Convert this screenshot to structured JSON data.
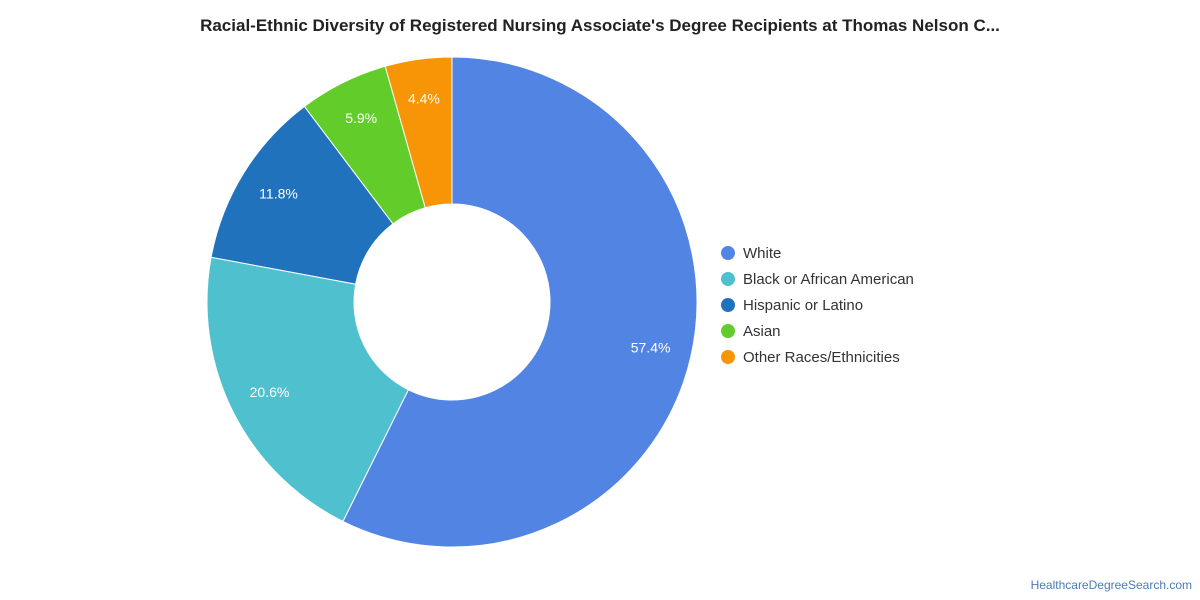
{
  "chart_data": {
    "type": "pie",
    "title": "Racial-Ethnic Diversity of Registered Nursing Associate's Degree Recipients at Thomas Nelson C...",
    "donut": true,
    "legend_position": "right",
    "slices": [
      {
        "label": "White",
        "value": 57.4,
        "display": "57.4%",
        "color": "#5285e3"
      },
      {
        "label": "Black or African American",
        "value": 20.6,
        "display": "20.6%",
        "color": "#4fc1ce"
      },
      {
        "label": "Hispanic or Latino",
        "value": 11.8,
        "display": "11.8%",
        "color": "#1f72bb"
      },
      {
        "label": "Asian",
        "value": 5.9,
        "display": "5.9%",
        "color": "#62cd2a"
      },
      {
        "label": "Other Races/Ethnicities",
        "value": 4.4,
        "display": "4.4%",
        "color": "#f79506"
      }
    ]
  },
  "footer": {
    "source": "HealthcareDegreeSearch.com"
  }
}
